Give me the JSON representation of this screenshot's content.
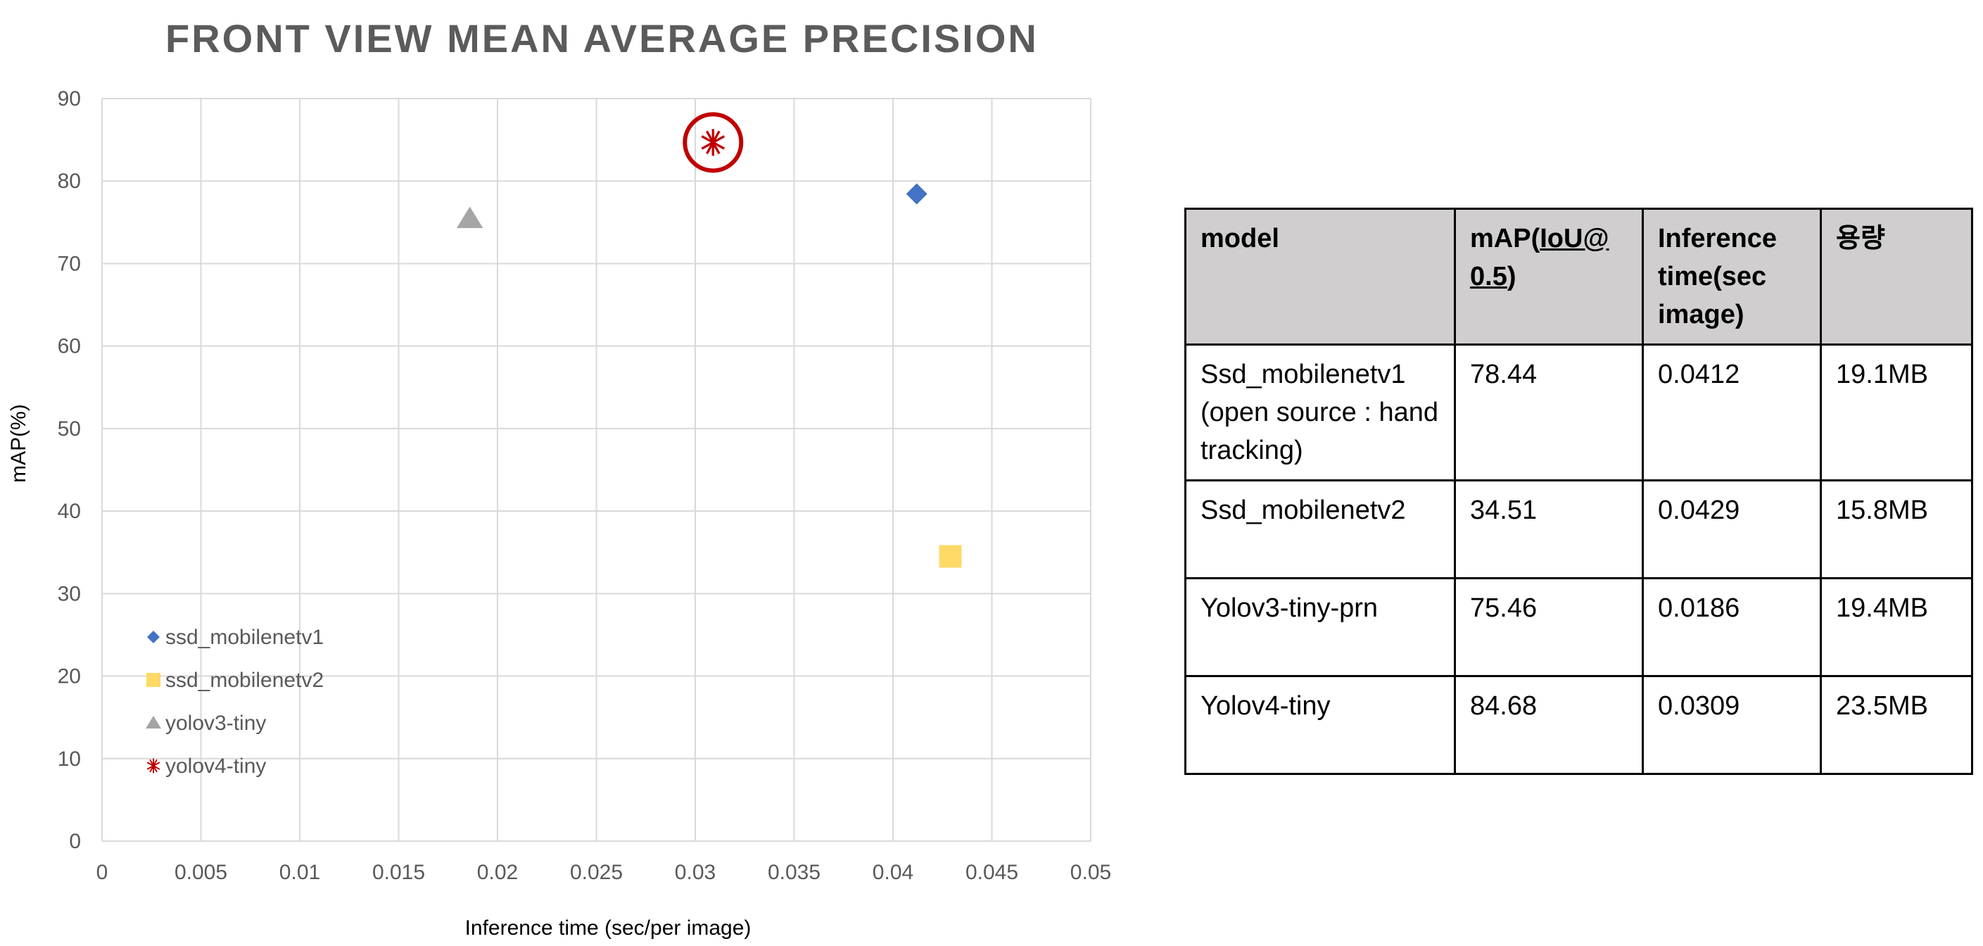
{
  "chart_data": {
    "type": "scatter",
    "title": "FRONT VIEW MEAN AVERAGE PRECISION",
    "xlabel": "Inference time (sec/per image)",
    "ylabel": "mAP(%)",
    "xlim": [
      0,
      0.05
    ],
    "ylim": [
      0,
      90
    ],
    "x_ticks": [
      "0",
      "0.005",
      "0.01",
      "0.015",
      "0.02",
      "0.025",
      "0.03",
      "0.035",
      "0.04",
      "0.045",
      "0.05"
    ],
    "y_ticks": [
      "0",
      "10",
      "20",
      "30",
      "40",
      "50",
      "60",
      "70",
      "80",
      "90"
    ],
    "grid": true,
    "legend_position": "bottom-left",
    "series": [
      {
        "name": "ssd_mobilenetv1",
        "marker": "diamond",
        "color": "#4472c4",
        "x": [
          0.0412
        ],
        "y": [
          78.44
        ]
      },
      {
        "name": "ssd_mobilenetv2",
        "marker": "square",
        "color": "#ffd966",
        "x": [
          0.0429
        ],
        "y": [
          34.51
        ]
      },
      {
        "name": "yolov3-tiny",
        "marker": "triangle",
        "color": "#a5a5a5",
        "x": [
          0.0186
        ],
        "y": [
          75.46
        ]
      },
      {
        "name": "yolov4-tiny",
        "marker": "asterisk",
        "color": "#c00000",
        "x": [
          0.0309
        ],
        "y": [
          84.68
        ]
      }
    ],
    "annotations": [
      {
        "type": "circle",
        "around_series": "yolov4-tiny",
        "color": "#c00000"
      }
    ]
  },
  "table": {
    "headers": {
      "model": "model",
      "map_prefix": "mAP(",
      "map_iou": "IoU@",
      "map_value": "0.5",
      "map_suffix": ")",
      "inference": "Inference time(sec image)",
      "size": "용량"
    },
    "rows": [
      {
        "model": "Ssd_mobilenetv1 (open source : hand tracking)",
        "map": "78.44",
        "time": "0.0412",
        "size": "19.1MB"
      },
      {
        "model": "Ssd_mobilenetv2",
        "map": "34.51",
        "time": "0.0429",
        "size": "15.8MB"
      },
      {
        "model": "Yolov3-tiny-prn",
        "map": "75.46",
        "time": "0.0186",
        "size": "19.4MB"
      },
      {
        "model": "Yolov4-tiny",
        "map": "84.68",
        "time": "0.0309",
        "size": "23.5MB"
      }
    ]
  }
}
